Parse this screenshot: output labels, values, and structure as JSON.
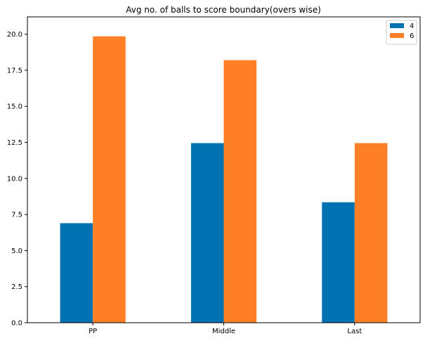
{
  "chart_data": {
    "type": "bar",
    "title": "Avg no. of balls to score boundary(overs wise)",
    "xlabel": "",
    "ylabel": "",
    "categories": [
      "PP",
      "Middle",
      "Last"
    ],
    "series": [
      {
        "name": "4",
        "values": [
          6.9,
          12.45,
          8.35
        ],
        "color": "#0072b2"
      },
      {
        "name": "6",
        "values": [
          19.85,
          18.2,
          12.45
        ],
        "color": "#ff7f27"
      }
    ],
    "ylim": [
      0,
      21.2
    ],
    "yticks": [
      "0.0",
      "2.5",
      "5.0",
      "7.5",
      "10.0",
      "12.5",
      "15.0",
      "17.5",
      "20.0"
    ],
    "grid": false,
    "legend_position": "top-right"
  }
}
